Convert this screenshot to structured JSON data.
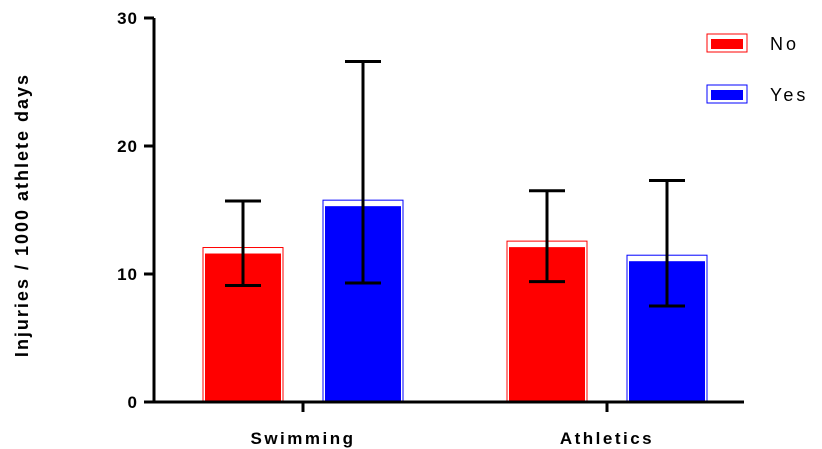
{
  "chart_data": {
    "type": "bar",
    "title": "",
    "xlabel": "",
    "ylabel": "Injuries / 1000 athlete days",
    "categories": [
      "Swimming",
      "Athletics"
    ],
    "ylim": [
      0,
      30
    ],
    "yticks": [
      0,
      10,
      20,
      30
    ],
    "series": [
      {
        "name": "No",
        "color": "#ff0000",
        "values": [
          11.6,
          12.1
        ],
        "error_low": [
          9.1,
          9.4
        ],
        "error_high": [
          15.7,
          16.5
        ]
      },
      {
        "name": "Yes",
        "color": "#0000ff",
        "values": [
          15.3,
          11.0
        ],
        "error_low": [
          9.3,
          7.5
        ],
        "error_high": [
          26.6,
          17.3
        ]
      }
    ],
    "legend_position": "top-right",
    "grid": false
  }
}
